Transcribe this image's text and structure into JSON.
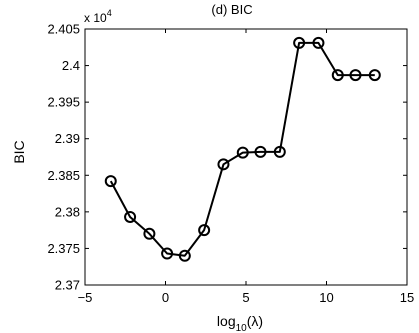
{
  "chart_data": {
    "type": "line",
    "title": "(d) BIC",
    "xlabel": {
      "base": "log",
      "sub": "10",
      "arg": "(λ)"
    },
    "ylabel": "BIC",
    "y_multiplier": {
      "base": "x 10",
      "exp": "4"
    },
    "xlim": [
      -5,
      15
    ],
    "ylim": [
      2.37,
      2.405
    ],
    "xticks": [
      -5,
      0,
      5,
      10,
      15
    ],
    "yticks": [
      2.37,
      2.375,
      2.38,
      2.385,
      2.39,
      2.395,
      2.4,
      2.405
    ],
    "xtick_labels": [
      "−5",
      "0",
      "5",
      "10",
      "15"
    ],
    "ytick_labels": [
      "2.37",
      "2.375",
      "2.38",
      "2.385",
      "2.39",
      "2.395",
      "2.4",
      "2.405"
    ],
    "grid": false,
    "series": [
      {
        "marker": "circle",
        "color": "#000000",
        "x": [
          -3.4,
          -2.2,
          -1.0,
          0.1,
          1.2,
          2.4,
          3.6,
          4.8,
          5.9,
          7.1,
          8.3,
          9.5,
          10.7,
          11.8,
          13.0
        ],
        "y": [
          2.3842,
          2.3793,
          2.377,
          2.3743,
          2.374,
          2.3775,
          2.3865,
          2.3881,
          2.3882,
          2.3882,
          2.4031,
          2.4031,
          2.3987,
          2.3987,
          2.3987
        ]
      }
    ]
  }
}
